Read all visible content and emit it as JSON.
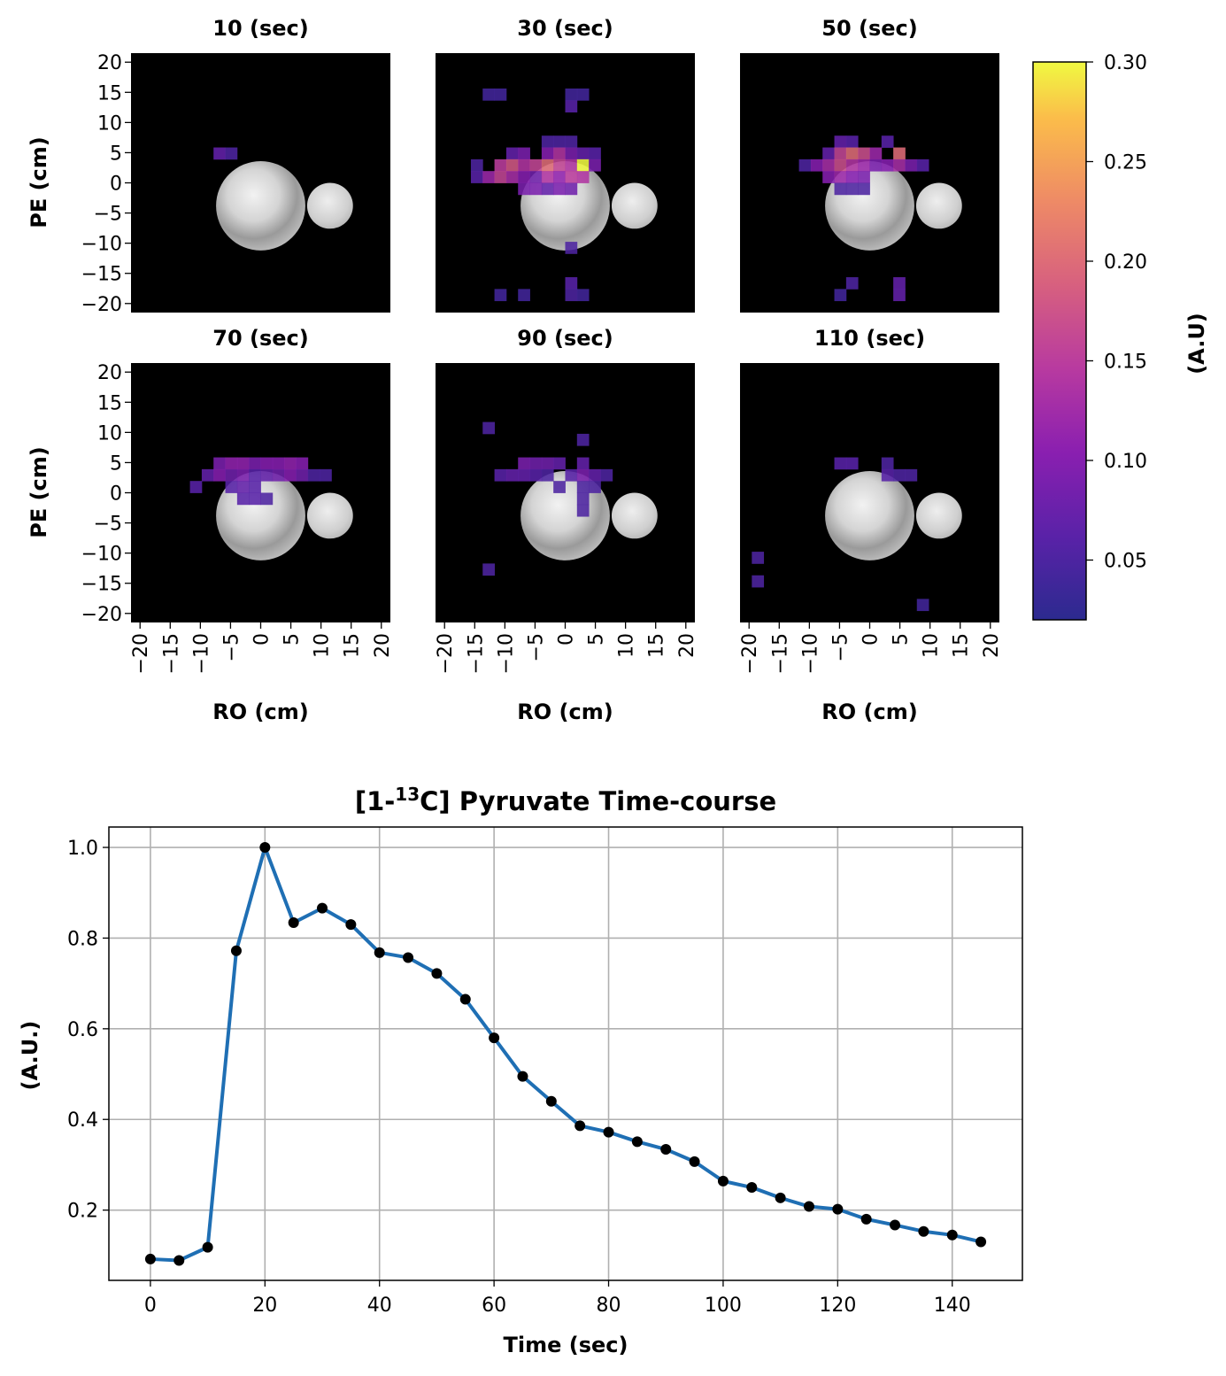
{
  "panels": [
    {
      "title": "10 (sec)",
      "cells": [
        [
          -4,
          3,
          0.07
        ],
        [
          -3,
          3,
          0.05
        ]
      ]
    },
    {
      "title": "30 (sec)",
      "cells": [
        [
          -7,
          8,
          0.04
        ],
        [
          -6,
          8,
          0.04
        ],
        [
          0,
          8,
          0.04
        ],
        [
          1,
          8,
          0.04
        ],
        [
          0,
          7,
          0.06
        ],
        [
          -1,
          4,
          0.05
        ],
        [
          -2,
          4,
          0.05
        ],
        [
          0,
          4,
          0.05
        ],
        [
          -5,
          3,
          0.07
        ],
        [
          -4,
          3,
          0.09
        ],
        [
          -2,
          3,
          0.1
        ],
        [
          -1,
          3,
          0.14
        ],
        [
          0,
          3,
          0.09
        ],
        [
          1,
          3,
          0.07
        ],
        [
          2,
          3,
          0.06
        ],
        [
          -8,
          2,
          0.05
        ],
        [
          -6,
          2,
          0.15
        ],
        [
          -5,
          2,
          0.18
        ],
        [
          -4,
          2,
          0.14
        ],
        [
          -3,
          2,
          0.16
        ],
        [
          -2,
          2,
          0.2
        ],
        [
          -1,
          2,
          0.16
        ],
        [
          0,
          2,
          0.14
        ],
        [
          1,
          2,
          0.3
        ],
        [
          2,
          2,
          0.09
        ],
        [
          -8,
          1,
          0.06
        ],
        [
          -7,
          1,
          0.12
        ],
        [
          -6,
          1,
          0.16
        ],
        [
          -5,
          1,
          0.13
        ],
        [
          -4,
          1,
          0.1
        ],
        [
          -3,
          1,
          0.08
        ],
        [
          -2,
          1,
          0.14
        ],
        [
          -1,
          1,
          0.11
        ],
        [
          0,
          1,
          0.15
        ],
        [
          1,
          1,
          0.14
        ],
        [
          -4,
          0,
          0.09
        ],
        [
          -3,
          0,
          0.09
        ],
        [
          -2,
          0,
          0.07
        ],
        [
          -1,
          0,
          0.09
        ],
        [
          0,
          0,
          0.08
        ],
        [
          0,
          -5,
          0.05
        ],
        [
          0,
          -8,
          0.06
        ],
        [
          0,
          -9,
          0.05
        ],
        [
          1,
          -9,
          0.04
        ],
        [
          -6,
          -9,
          0.04
        ],
        [
          -4,
          -9,
          0.04
        ]
      ]
    },
    {
      "title": "50 (sec)",
      "cells": [
        [
          -3,
          4,
          0.07
        ],
        [
          -2,
          4,
          0.06
        ],
        [
          1,
          4,
          0.06
        ],
        [
          -4,
          3,
          0.07
        ],
        [
          -3,
          3,
          0.16
        ],
        [
          -2,
          3,
          0.2
        ],
        [
          -1,
          3,
          0.17
        ],
        [
          0,
          3,
          0.12
        ],
        [
          2,
          3,
          0.2
        ],
        [
          -6,
          2,
          0.05
        ],
        [
          -5,
          2,
          0.1
        ],
        [
          -4,
          2,
          0.13
        ],
        [
          -3,
          2,
          0.17
        ],
        [
          -2,
          2,
          0.14
        ],
        [
          -1,
          2,
          0.12
        ],
        [
          0,
          2,
          0.09
        ],
        [
          1,
          2,
          0.1
        ],
        [
          2,
          2,
          0.13
        ],
        [
          3,
          2,
          0.09
        ],
        [
          4,
          2,
          0.06
        ],
        [
          -4,
          1,
          0.1
        ],
        [
          -3,
          1,
          0.12
        ],
        [
          -2,
          1,
          0.1
        ],
        [
          -1,
          1,
          0.09
        ],
        [
          -3,
          0,
          0.05
        ],
        [
          -2,
          0,
          0.05
        ],
        [
          -1,
          0,
          0.05
        ],
        [
          -2,
          -8,
          0.05
        ],
        [
          2,
          -8,
          0.07
        ],
        [
          2,
          -9,
          0.07
        ],
        [
          -3,
          -9,
          0.04
        ]
      ]
    },
    {
      "title": "70 (sec)",
      "cells": [
        [
          -4,
          3,
          0.09
        ],
        [
          -3,
          3,
          0.11
        ],
        [
          -2,
          3,
          0.11
        ],
        [
          -1,
          3,
          0.09
        ],
        [
          0,
          3,
          0.1
        ],
        [
          1,
          3,
          0.1
        ],
        [
          2,
          3,
          0.11
        ],
        [
          3,
          3,
          0.1
        ],
        [
          -5,
          2,
          0.07
        ],
        [
          -4,
          2,
          0.1
        ],
        [
          -3,
          2,
          0.08
        ],
        [
          -2,
          2,
          0.09
        ],
        [
          -1,
          2,
          0.06
        ],
        [
          0,
          2,
          0.07
        ],
        [
          1,
          2,
          0.08
        ],
        [
          2,
          2,
          0.1
        ],
        [
          3,
          2,
          0.08
        ],
        [
          4,
          2,
          0.05
        ],
        [
          5,
          2,
          0.05
        ],
        [
          -6,
          1,
          0.06
        ],
        [
          -3,
          1,
          0.06
        ],
        [
          -2,
          1,
          0.07
        ],
        [
          -1,
          1,
          0.06
        ],
        [
          -2,
          0,
          0.06
        ],
        [
          -1,
          0,
          0.06
        ],
        [
          0,
          0,
          0.05
        ]
      ]
    },
    {
      "title": "90 (sec)",
      "cells": [
        [
          -7,
          6,
          0.05
        ],
        [
          1,
          5,
          0.05
        ],
        [
          -4,
          3,
          0.09
        ],
        [
          -3,
          3,
          0.08
        ],
        [
          -2,
          3,
          0.08
        ],
        [
          -1,
          3,
          0.07
        ],
        [
          1,
          3,
          0.07
        ],
        [
          -6,
          2,
          0.06
        ],
        [
          -5,
          2,
          0.07
        ],
        [
          -4,
          2,
          0.07
        ],
        [
          -3,
          2,
          0.06
        ],
        [
          -2,
          2,
          0.05
        ],
        [
          0,
          2,
          0.06
        ],
        [
          1,
          2,
          0.09
        ],
        [
          2,
          2,
          0.07
        ],
        [
          3,
          2,
          0.05
        ],
        [
          -1,
          1,
          0.05
        ],
        [
          1,
          1,
          0.05
        ],
        [
          2,
          1,
          0.05
        ],
        [
          1,
          0,
          0.05
        ],
        [
          1,
          -1,
          0.05
        ],
        [
          -7,
          -6,
          0.05
        ]
      ]
    },
    {
      "title": "110 (sec)",
      "cells": [
        [
          -3,
          3,
          0.06
        ],
        [
          -2,
          3,
          0.06
        ],
        [
          1,
          3,
          0.05
        ],
        [
          1,
          2,
          0.06
        ],
        [
          2,
          2,
          0.05
        ],
        [
          3,
          2,
          0.05
        ],
        [
          -10,
          -5,
          0.05
        ],
        [
          -10,
          -7,
          0.05
        ],
        [
          4,
          -9,
          0.04
        ]
      ]
    }
  ],
  "image_axes": {
    "xlabel": "RO (cm)",
    "ylabel": "PE (cm)",
    "ticks": [
      -20,
      -15,
      -10,
      -5,
      0,
      5,
      10,
      15,
      20
    ],
    "tick_labels": [
      "−20",
      "−15",
      "−10",
      "−5",
      "0",
      "5",
      "10",
      "15",
      "20"
    ]
  },
  "colorbar": {
    "label": "(A.U)",
    "range": [
      0.02,
      0.3
    ],
    "ticks": [
      0.05,
      0.1,
      0.15,
      0.2,
      0.25,
      0.3
    ],
    "tick_labels": [
      "0.05",
      "0.10",
      "0.15",
      "0.20",
      "0.25",
      "0.30"
    ],
    "colormap": "plasma"
  },
  "chart_data": {
    "type": "line",
    "title_main": "[1-",
    "title_sup": "13",
    "title_rest": "C] Pyruvate Time-course",
    "xlabel": "Time (sec)",
    "ylabel": "(A.U.)",
    "xlim": [
      -7.25,
      152.25
    ],
    "ylim": [
      0.045,
      1.045
    ],
    "xticks": [
      0,
      20,
      40,
      60,
      80,
      100,
      120,
      140
    ],
    "xtick_labels": [
      "0",
      "20",
      "40",
      "60",
      "80",
      "100",
      "120",
      "140"
    ],
    "yticks": [
      0.2,
      0.4,
      0.6,
      0.8,
      1.0
    ],
    "ytick_labels": [
      "0.2",
      "0.4",
      "0.6",
      "0.8",
      "1.0"
    ],
    "grid": true,
    "line_color": "#1f6fb4",
    "marker_color": "#000000",
    "x": [
      0,
      5,
      10,
      15,
      20,
      25,
      30,
      35,
      40,
      45,
      50,
      55,
      60,
      65,
      70,
      75,
      80,
      85,
      90,
      95,
      100,
      105,
      110,
      115,
      120,
      125,
      130,
      135,
      140,
      145
    ],
    "y": [
      0.092,
      0.089,
      0.118,
      0.772,
      1.0,
      0.834,
      0.866,
      0.83,
      0.768,
      0.757,
      0.722,
      0.665,
      0.58,
      0.495,
      0.44,
      0.386,
      0.372,
      0.351,
      0.334,
      0.307,
      0.264,
      0.25,
      0.227,
      0.208,
      0.202,
      0.18,
      0.167,
      0.153,
      0.145,
      0.13
    ]
  }
}
